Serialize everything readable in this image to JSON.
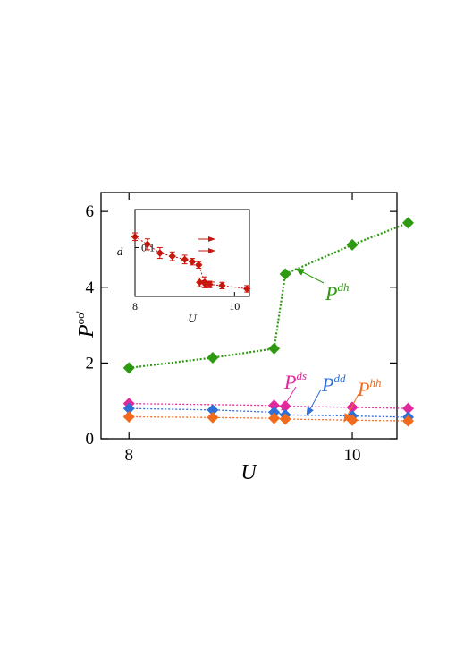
{
  "chart_data": [
    {
      "type": "line",
      "xlabel": "U",
      "ylabel_base": "P",
      "ylabel_sup": "oo'",
      "xlim": [
        7.75,
        10.4
      ],
      "ylim": [
        0,
        6.5
      ],
      "xticks": [
        8,
        10
      ],
      "xtick_labels": [
        "8",
        "10"
      ],
      "yticks": [
        0,
        2,
        4,
        6
      ],
      "ytick_labels": [
        "0",
        "2",
        "4",
        "6"
      ],
      "grid": false,
      "series": [
        {
          "name_base": "P",
          "name_sup": "dh",
          "color": "#2e9a12",
          "x": [
            8,
            8.75,
            9.3,
            9.4,
            10,
            10.5
          ],
          "y": [
            1.87,
            2.14,
            2.38,
            4.35,
            5.12,
            5.7
          ]
        },
        {
          "name_base": "P",
          "name_sup": "ds",
          "color": "#e0299c",
          "x": [
            8,
            9.3,
            9.4,
            10,
            10.5
          ],
          "y": [
            0.93,
            0.88,
            0.86,
            0.83,
            0.8
          ]
        },
        {
          "name_base": "P",
          "name_sup": "dd",
          "color": "#2f6fd8",
          "x": [
            8,
            8.75,
            9.3,
            9.4,
            10,
            10.5
          ],
          "y": [
            0.8,
            0.76,
            0.7,
            0.63,
            0.6,
            0.57
          ]
        },
        {
          "name_base": "P",
          "name_sup": "hh",
          "color": "#f26a1b",
          "x": [
            8,
            8.75,
            9.3,
            9.4,
            10,
            10.5
          ],
          "y": [
            0.58,
            0.56,
            0.54,
            0.52,
            0.49,
            0.47
          ]
        }
      ]
    },
    {
      "type": "scatter",
      "xlabel": "U",
      "ylabel": "d",
      "xlim": [
        8,
        10.3
      ],
      "ylim": [
        0.0955,
        0.1035
      ],
      "xticks": [
        8,
        10
      ],
      "xtick_labels": [
        "8",
        "10"
      ],
      "yticks": [
        0.1
      ],
      "ytick_labels": [
        "0.1"
      ],
      "series": [
        {
          "name": "",
          "color": "#c8160c",
          "x": [
            8,
            8.25,
            8.5,
            8.75,
            9,
            9.15,
            9.28,
            9.4,
            9.3,
            9.42,
            9.5,
            9.75,
            10.25
          ],
          "y": [
            0.101,
            0.1003,
            0.0995,
            0.0992,
            0.0989,
            0.0987,
            0.0984,
            0.0968,
            0.0968,
            0.0966,
            0.0966,
            0.0965,
            0.0962
          ],
          "err": [
            0.00035,
            0.0005,
            0.0005,
            0.0004,
            0.0004,
            0.0003,
            0.0003,
            0.0005,
            0.0004,
            0.0003,
            0.0003,
            0.0003,
            0.0003
          ]
        }
      ]
    }
  ]
}
